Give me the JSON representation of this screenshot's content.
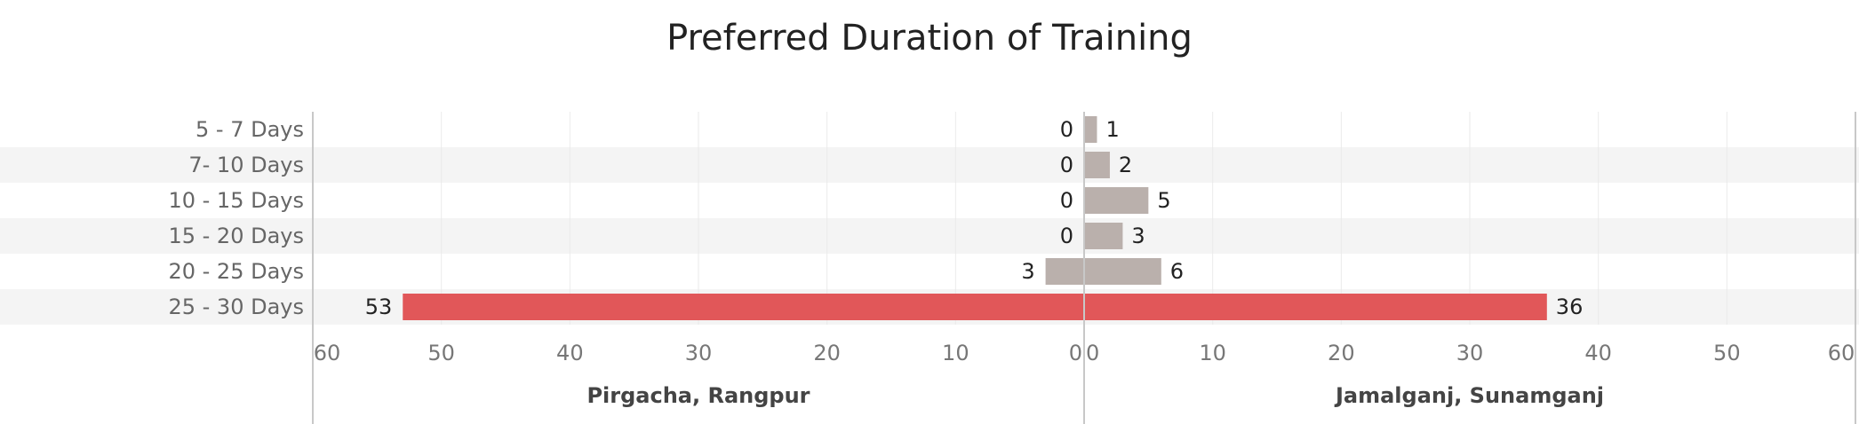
{
  "chart_data": {
    "type": "bar",
    "orientation": "horizontal-butterfly",
    "title": "Preferred Duration of Training",
    "categories": [
      "5 - 7 Days",
      "7- 10 Days",
      "10 - 15 Days",
      "15 - 20 Days",
      "20 - 25 Days",
      "25 - 30 Days"
    ],
    "series": [
      {
        "name": "Pirgacha, Rangpur",
        "values": [
          0,
          0,
          0,
          0,
          3,
          53
        ]
      },
      {
        "name": "Jamalganj, Sunamganj",
        "values": [
          1,
          2,
          5,
          3,
          6,
          36
        ]
      }
    ],
    "xlim": [
      0,
      60
    ],
    "x_ticks": [
      60,
      50,
      40,
      30,
      20,
      10,
      0
    ],
    "grid": true,
    "highlight_category": "25 - 30 Days",
    "colors": {
      "bar_default": "#bab0ac",
      "bar_highlight": "#e15759",
      "band": "#f4f4f4",
      "grid": "#eaeaea",
      "axis": "#c8c8c8"
    }
  }
}
